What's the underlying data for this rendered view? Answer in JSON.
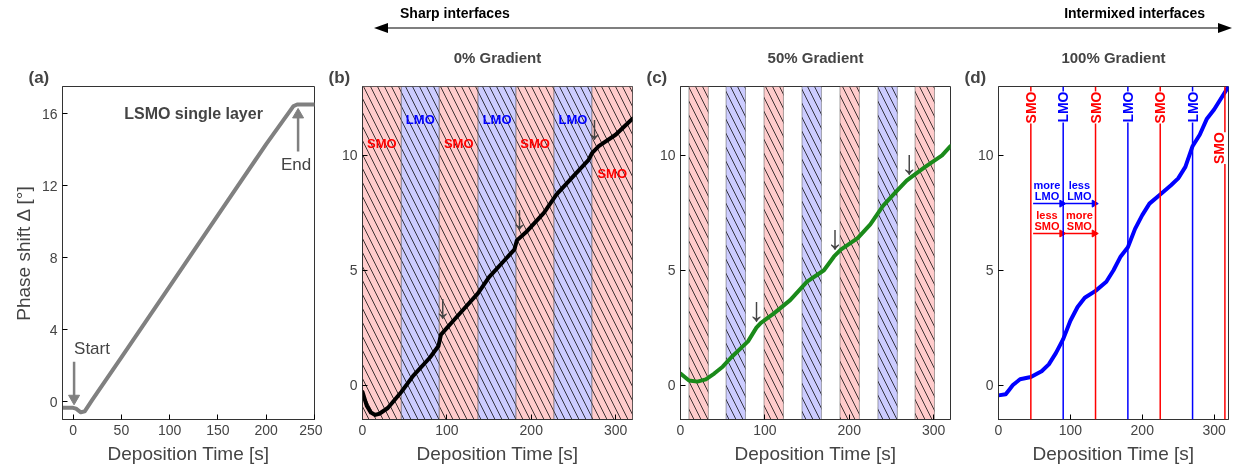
{
  "chart_data": [
    {
      "type": "other",
      "annotations": [
        "Sharp interfaces",
        "Intermixed interfaces"
      ]
    },
    {
      "type": "line",
      "subtitle": "(a)",
      "xlabel": "Deposition Time [s]",
      "ylabel": "Phase shift Δ [°]",
      "xlim": [
        -11,
        250
      ],
      "ylim": [
        -1,
        17.5
      ],
      "xticks": [
        0,
        50,
        100,
        150,
        200,
        250
      ],
      "yticks": [
        0,
        4,
        8,
        12,
        16
      ],
      "series": [
        {
          "color": "#808080",
          "x": [
            -11,
            0,
            3,
            8,
            12,
            20,
            50,
            100,
            150,
            200,
            228,
            232,
            250
          ],
          "values": [
            -0.35,
            -0.35,
            -0.4,
            -0.6,
            -0.55,
            0.1,
            2.45,
            6.4,
            10.35,
            14.3,
            16.4,
            16.5,
            16.5
          ]
        }
      ],
      "annotations": [
        "LSMO single layer",
        {
          "text": "Start",
          "x": 1,
          "y": -0.2
        },
        {
          "text": "End",
          "x": 233,
          "y": 16.3
        }
      ]
    },
    {
      "type": "line",
      "subtitle": "(b)",
      "title": "0% Gradient",
      "xlabel": "Deposition Time [s]",
      "xlim": [
        0,
        320
      ],
      "ylim": [
        -1.5,
        13
      ],
      "xticks": [
        0,
        100,
        200,
        300
      ],
      "yticks": [
        0,
        5,
        10
      ],
      "series": [
        {
          "color": "#000000",
          "x": [
            0,
            5,
            10,
            15,
            20,
            30,
            46,
            60,
            80,
            90,
            93,
            98,
            110,
            137,
            150,
            170,
            180,
            183,
            195,
            215,
            230,
            250,
            268,
            272,
            280,
            300,
            320
          ],
          "values": [
            -0.3,
            -0.9,
            -1.2,
            -1.3,
            -1.25,
            -1.0,
            -0.3,
            0.4,
            1.2,
            1.7,
            2.2,
            2.4,
            2.9,
            4.0,
            4.7,
            5.5,
            5.9,
            6.3,
            6.7,
            7.5,
            8.3,
            9.1,
            9.8,
            10.1,
            10.4,
            10.9,
            11.6
          ]
        }
      ],
      "bands": [
        {
          "axis": "x",
          "from": 0,
          "to": 46,
          "label": "SMO",
          "color": "#ffcccc"
        },
        {
          "axis": "x",
          "from": 46,
          "to": 91,
          "label": "LMO",
          "color": "#ccccff"
        },
        {
          "axis": "x",
          "from": 91,
          "to": 137,
          "label": "SMO",
          "color": "#ffcccc"
        },
        {
          "axis": "x",
          "from": 137,
          "to": 182,
          "label": "LMO",
          "color": "#ccccff"
        },
        {
          "axis": "x",
          "from": 182,
          "to": 227,
          "label": "SMO",
          "color": "#ffcccc"
        },
        {
          "axis": "x",
          "from": 227,
          "to": 272,
          "label": "LMO",
          "color": "#ccccff"
        },
        {
          "axis": "x",
          "from": 272,
          "to": 320,
          "label": "SMO",
          "color": "#ffcccc"
        }
      ],
      "annotations": [
        {
          "text": "↓",
          "x": 95,
          "y": 2.6
        },
        {
          "text": "↓",
          "x": 186,
          "y": 6.5
        },
        {
          "text": "↓",
          "x": 275,
          "y": 10.4
        }
      ]
    },
    {
      "type": "line",
      "subtitle": "(c)",
      "title": "50% Gradient",
      "xlabel": "Deposition Time [s]",
      "xlim": [
        0,
        320
      ],
      "ylim": [
        -1.5,
        13
      ],
      "xticks": [
        0,
        100,
        200,
        300
      ],
      "yticks": [
        0,
        5,
        10
      ],
      "series": [
        {
          "color": "#1a8a1a",
          "x": [
            0,
            5,
            10,
            20,
            30,
            40,
            50,
            60,
            80,
            90,
            95,
            110,
            130,
            150,
            170,
            182,
            190,
            210,
            225,
            240,
            255,
            268,
            275,
            290,
            310,
            320
          ],
          "values": [
            0.5,
            0.35,
            0.2,
            0.15,
            0.25,
            0.5,
            0.8,
            1.2,
            1.9,
            2.5,
            2.7,
            3.1,
            3.7,
            4.5,
            5.0,
            5.6,
            5.9,
            6.4,
            7.0,
            7.8,
            8.4,
            8.9,
            9.1,
            9.5,
            10.0,
            10.4
          ]
        }
      ],
      "bands": [
        {
          "axis": "x",
          "from": 10,
          "to": 33,
          "color": "#ffcccc"
        },
        {
          "axis": "x",
          "from": 54,
          "to": 77,
          "color": "#ccccff"
        },
        {
          "axis": "x",
          "from": 99,
          "to": 122,
          "color": "#ffcccc"
        },
        {
          "axis": "x",
          "from": 144,
          "to": 167,
          "color": "#ccccff"
        },
        {
          "axis": "x",
          "from": 189,
          "to": 212,
          "color": "#ffcccc"
        },
        {
          "axis": "x",
          "from": 234,
          "to": 257,
          "color": "#ccccff"
        },
        {
          "axis": "x",
          "from": 278,
          "to": 301,
          "color": "#ffcccc"
        }
      ],
      "annotations": [
        {
          "text": "↓",
          "x": 90,
          "y": 2.5
        },
        {
          "text": "↓",
          "x": 183,
          "y": 5.6
        },
        {
          "text": "↓",
          "x": 271,
          "y": 8.9
        }
      ]
    },
    {
      "type": "line",
      "subtitle": "(d)",
      "title": "100% Gradient",
      "xlabel": "Deposition Time [s]",
      "xlim": [
        0,
        320
      ],
      "ylim": [
        -1.5,
        13
      ],
      "xticks": [
        0,
        100,
        200,
        300
      ],
      "yticks": [
        0,
        5,
        10
      ],
      "series": [
        {
          "color": "#0000ff",
          "x": [
            0,
            10,
            15,
            20,
            30,
            45,
            60,
            70,
            80,
            90,
            100,
            110,
            120,
            135,
            150,
            160,
            170,
            180,
            190,
            200,
            210,
            225,
            240,
            250,
            260,
            270,
            280,
            290,
            300,
            310,
            320
          ],
          "values": [
            -0.45,
            -0.4,
            -0.2,
            0.0,
            0.25,
            0.35,
            0.6,
            0.9,
            1.4,
            2.0,
            2.8,
            3.4,
            3.8,
            4.1,
            4.5,
            5.0,
            5.6,
            6.0,
            6.8,
            7.4,
            7.9,
            8.3,
            8.7,
            9.0,
            9.5,
            10.4,
            10.9,
            11.6,
            12.0,
            12.5,
            13.0
          ]
        }
      ],
      "ref_lines": [
        {
          "axis": "x",
          "value": 45,
          "label": "SMO",
          "color": "#ff0000"
        },
        {
          "axis": "x",
          "value": 90,
          "label": "LMO",
          "color": "#0000ff"
        },
        {
          "axis": "x",
          "value": 135,
          "label": "SMO",
          "color": "#ff0000"
        },
        {
          "axis": "x",
          "value": 180,
          "label": "LMO",
          "color": "#0000ff"
        },
        {
          "axis": "x",
          "value": 225,
          "label": "SMO",
          "color": "#ff0000"
        },
        {
          "axis": "x",
          "value": 270,
          "label": "LMO",
          "color": "#0000ff"
        },
        {
          "axis": "x",
          "value": 315,
          "label": "SMO",
          "color": "#ff0000"
        }
      ],
      "annotations": [
        {
          "text": "more\nLMO",
          "x": 90,
          "y": 7.9
        },
        {
          "text": "less\nLMO",
          "x": 135,
          "y": 7.9
        },
        {
          "text": "less\nSMO",
          "x": 90,
          "y": 6.6
        },
        {
          "text": "more\nSMO",
          "x": 135,
          "y": 6.6
        }
      ]
    }
  ]
}
